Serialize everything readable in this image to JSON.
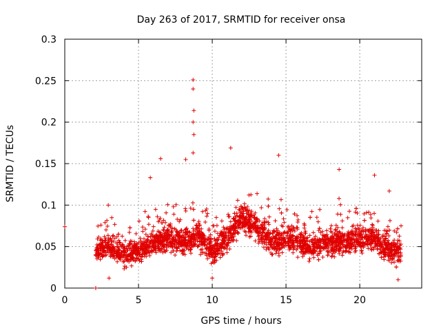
{
  "chart_data": {
    "type": "scatter",
    "title": "Day 263 of 2017, SRMTID for receiver onsa",
    "xlabel": "GPS time / hours",
    "ylabel": "SRMTID / TECUs",
    "xlim": [
      0,
      24.2
    ],
    "ylim": [
      0,
      0.3
    ],
    "x_ticks": [
      0,
      5,
      10,
      15,
      20
    ],
    "x_tick_labels": [
      "0",
      "5",
      "10",
      "15",
      "20"
    ],
    "y_ticks": [
      0,
      0.05,
      0.1,
      0.15,
      0.2,
      0.25,
      0.3
    ],
    "y_tick_labels": [
      "0",
      "0.05",
      "0.1",
      "0.15",
      "0.2",
      "0.25",
      "0.3"
    ],
    "grid": true,
    "marker": "plus",
    "color": "#e00000",
    "series": [
      {
        "name": "SRMTID",
        "data_extent_hours": [
          2.1,
          22.8
        ],
        "baseline_profile": {
          "x": [
            2.1,
            3.0,
            4.0,
            5.0,
            6.0,
            7.0,
            8.0,
            9.0,
            10.0,
            11.0,
            12.0,
            13.0,
            14.0,
            15.0,
            16.0,
            17.0,
            18.0,
            19.0,
            20.0,
            21.0,
            22.0,
            22.8
          ],
          "y": [
            0.045,
            0.05,
            0.04,
            0.045,
            0.055,
            0.06,
            0.055,
            0.065,
            0.045,
            0.06,
            0.085,
            0.075,
            0.055,
            0.06,
            0.055,
            0.05,
            0.055,
            0.055,
            0.06,
            0.06,
            0.045,
            0.04
          ]
        },
        "notable_points": [
          {
            "x": 0.0,
            "y": 0.074
          },
          {
            "x": 2.1,
            "y": 0.0
          },
          {
            "x": 8.7,
            "y": 0.251
          },
          {
            "x": 8.7,
            "y": 0.24
          },
          {
            "x": 8.75,
            "y": 0.214
          },
          {
            "x": 8.7,
            "y": 0.2
          },
          {
            "x": 8.75,
            "y": 0.185
          },
          {
            "x": 8.7,
            "y": 0.163
          },
          {
            "x": 11.25,
            "y": 0.169
          },
          {
            "x": 14.5,
            "y": 0.16
          },
          {
            "x": 6.5,
            "y": 0.156
          },
          {
            "x": 8.2,
            "y": 0.155
          },
          {
            "x": 5.8,
            "y": 0.133
          },
          {
            "x": 18.6,
            "y": 0.143
          },
          {
            "x": 21.0,
            "y": 0.136
          },
          {
            "x": 22.0,
            "y": 0.117
          },
          {
            "x": 2.95,
            "y": 0.1
          },
          {
            "x": 3.0,
            "y": 0.012
          },
          {
            "x": 10.0,
            "y": 0.012
          },
          {
            "x": 22.6,
            "y": 0.01
          },
          {
            "x": 22.8,
            "y": 0.075
          }
        ]
      }
    ]
  }
}
